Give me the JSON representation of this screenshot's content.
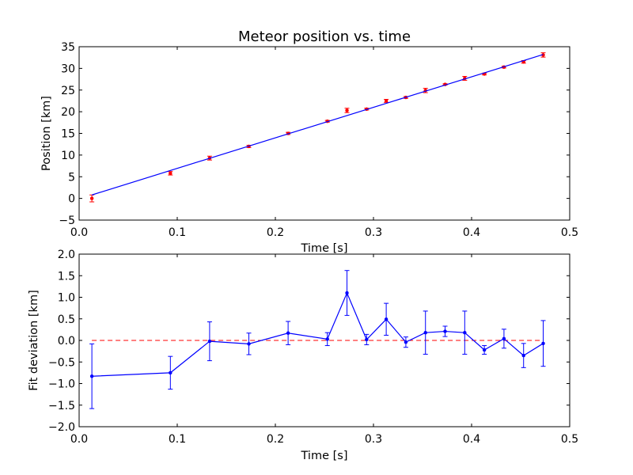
{
  "colors": {
    "fit_line": "#0000ff",
    "data_points": "#ff0000",
    "deviation_series": "#0000ff",
    "zero_line": "#ff0000",
    "axes": "#000000",
    "background": "#ffffff"
  },
  "chart_data": [
    {
      "type": "scatter",
      "title": "Meteor position vs. time",
      "xlabel": "Time [s]",
      "ylabel": "Position [km]",
      "xlim": [
        0.0,
        0.5
      ],
      "ylim": [
        -5,
        35
      ],
      "xticks": [
        "0.0",
        "0.1",
        "0.2",
        "0.3",
        "0.4",
        "0.5"
      ],
      "yticks": [
        "−5",
        "0",
        "5",
        "10",
        "15",
        "20",
        "25",
        "30",
        "35"
      ],
      "grid": false,
      "series": [
        {
          "kind": "points-with-errorbars",
          "x": [
            0.013,
            0.093,
            0.133,
            0.173,
            0.213,
            0.253,
            0.273,
            0.293,
            0.313,
            0.333,
            0.353,
            0.373,
            0.393,
            0.413,
            0.433,
            0.453,
            0.473
          ],
          "y": [
            0.0,
            5.8,
            9.3,
            12.0,
            15.0,
            17.8,
            20.3,
            20.6,
            22.5,
            23.3,
            24.9,
            26.3,
            27.7,
            28.7,
            30.3,
            31.5,
            33.1
          ],
          "yerr": [
            0.8,
            0.4,
            0.45,
            0.25,
            0.25,
            0.2,
            0.5,
            0.2,
            0.35,
            0.2,
            0.5,
            0.15,
            0.45,
            0.2,
            0.2,
            0.3,
            0.5
          ]
        },
        {
          "kind": "fit-line",
          "x": [
            0.013,
            0.473
          ],
          "y": [
            0.8,
            33.2
          ]
        }
      ]
    },
    {
      "type": "line",
      "title": "",
      "xlabel": "Time [s]",
      "ylabel": "Fit deviation [km]",
      "xlim": [
        0.0,
        0.5
      ],
      "ylim": [
        -2.0,
        2.0
      ],
      "xticks": [
        "0.0",
        "0.1",
        "0.2",
        "0.3",
        "0.4",
        "0.5"
      ],
      "yticks": [
        "−2.0",
        "−1.5",
        "−1.0",
        "−0.5",
        "0.0",
        "0.5",
        "1.0",
        "1.5",
        "2.0"
      ],
      "grid": false,
      "reference_line": {
        "y": 0.0,
        "style": "dashed",
        "x_range": [
          0.013,
          0.473
        ]
      },
      "series": [
        {
          "kind": "line-with-errorbars",
          "x": [
            0.013,
            0.093,
            0.133,
            0.173,
            0.213,
            0.253,
            0.273,
            0.293,
            0.313,
            0.333,
            0.353,
            0.373,
            0.393,
            0.413,
            0.433,
            0.453,
            0.473
          ],
          "y": [
            -0.83,
            -0.75,
            -0.02,
            -0.08,
            0.17,
            0.03,
            1.1,
            0.02,
            0.49,
            -0.04,
            0.18,
            0.21,
            0.18,
            -0.22,
            0.04,
            -0.35,
            -0.07
          ],
          "yerr": [
            0.75,
            0.38,
            0.45,
            0.25,
            0.27,
            0.15,
            0.52,
            0.12,
            0.37,
            0.12,
            0.5,
            0.12,
            0.5,
            0.1,
            0.22,
            0.28,
            0.53
          ]
        }
      ]
    }
  ]
}
